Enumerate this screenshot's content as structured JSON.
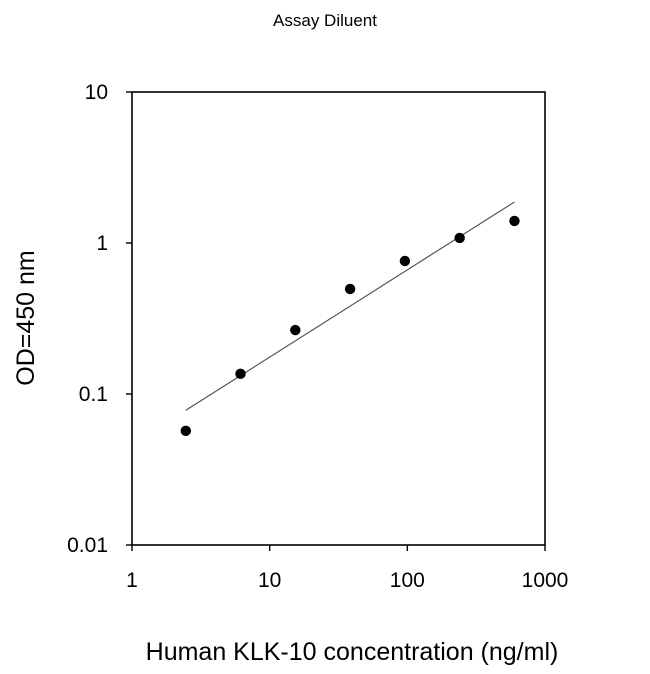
{
  "chart_data": {
    "type": "scatter",
    "title": "Assay Diluent",
    "xlabel": "Human KLK-10 concentration (ng/ml)",
    "ylabel": "OD=450 nm",
    "xscale": "log",
    "yscale": "log",
    "xlim": [
      1,
      1000
    ],
    "ylim": [
      0.01,
      10
    ],
    "x_ticks": [
      1,
      10,
      100,
      1000
    ],
    "x_tick_labels": [
      "1",
      "10",
      "100",
      "1000"
    ],
    "y_ticks": [
      0.01,
      0.1,
      1,
      10
    ],
    "y_tick_labels": [
      "0.01",
      "0.1",
      "1",
      "10"
    ],
    "grid": false,
    "legend": null,
    "series": [
      {
        "name": "Standard",
        "marker": "filled-circle",
        "color": "#000000",
        "x": [
          2.46,
          6.14,
          15.36,
          38.4,
          96,
          240,
          600
        ],
        "y": [
          0.057,
          0.136,
          0.265,
          0.496,
          0.76,
          1.08,
          1.4
        ]
      },
      {
        "name": "Fit line",
        "style": "line",
        "color": "#555555",
        "x": [
          2.46,
          600
        ],
        "y": [
          0.078,
          1.87
        ]
      }
    ]
  }
}
